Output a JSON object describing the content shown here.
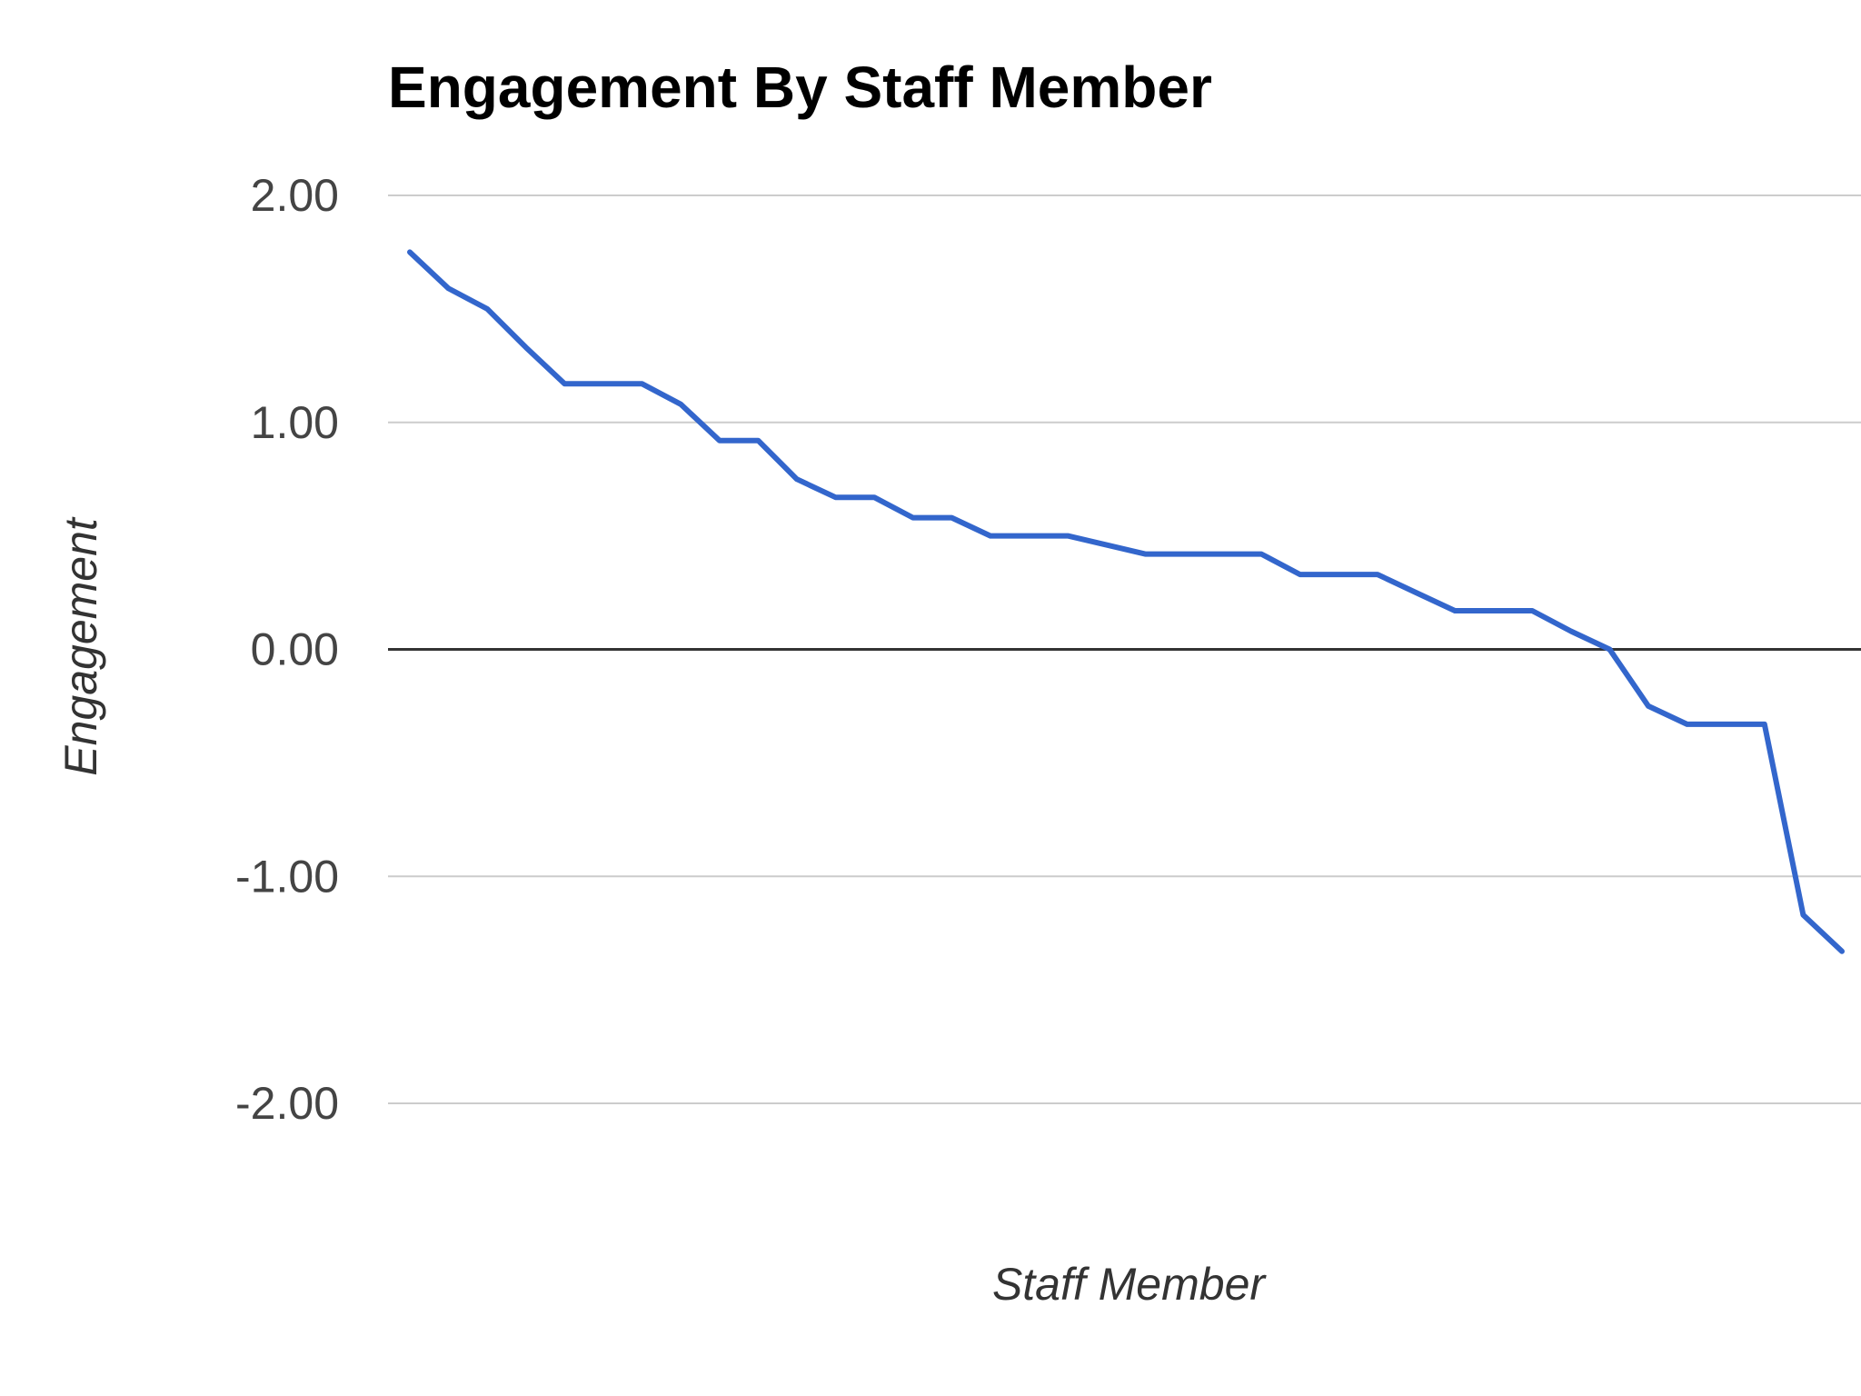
{
  "chart_data": {
    "type": "line",
    "title": "Engagement By Staff Member",
    "xlabel": "Staff Member",
    "ylabel": "Engagement",
    "ylim": [
      -2,
      2
    ],
    "yticks": [
      2,
      1,
      0,
      -1,
      -2
    ],
    "ytick_labels": [
      "2.00",
      "1.00",
      "0.00",
      "-1.00",
      "-2.00"
    ],
    "grid": true,
    "legend": "none",
    "series": [
      {
        "name": "Engagement",
        "color": "#3366cc",
        "values": [
          1.75,
          1.59,
          1.5,
          1.33,
          1.17,
          1.17,
          1.17,
          1.08,
          0.92,
          0.92,
          0.75,
          0.67,
          0.67,
          0.58,
          0.58,
          0.5,
          0.5,
          0.5,
          0.46,
          0.42,
          0.42,
          0.42,
          0.42,
          0.33,
          0.33,
          0.33,
          0.25,
          0.17,
          0.17,
          0.17,
          0.08,
          0.0,
          -0.25,
          -0.33,
          -0.33,
          -0.33,
          -1.17,
          -1.33
        ]
      }
    ]
  }
}
